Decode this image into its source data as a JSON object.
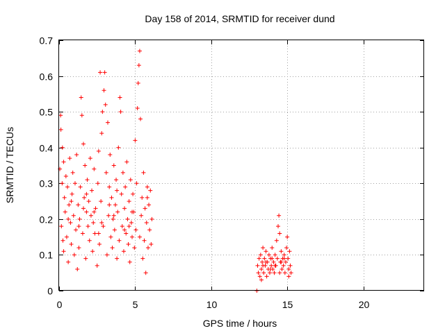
{
  "chart_data": {
    "type": "scatter",
    "title": "Day 158 of 2014, SRMTID for receiver dund",
    "xlabel": "GPS time / hours",
    "ylabel": "SRMTID / TECUs",
    "xlim": [
      0,
      24
    ],
    "ylim": [
      0,
      0.7
    ],
    "xticks": [
      0,
      5,
      10,
      15,
      20
    ],
    "xtick_labels": [
      "0",
      "5",
      "10",
      "15",
      "20"
    ],
    "yticks": [
      0,
      0.1,
      0.2,
      0.3,
      0.4,
      0.5,
      0.6,
      0.7
    ],
    "ytick_labels": [
      "0",
      "0.1",
      "0.2",
      "0.3",
      "0.4",
      "0.5",
      "0.6",
      "0.7"
    ],
    "grid": true,
    "marker": "+",
    "marker_color": "#ff0000",
    "series": [
      {
        "name": "SRMTID",
        "points": [
          [
            0.05,
            0.34
          ],
          [
            0.1,
            0.49
          ],
          [
            0.12,
            0.45
          ],
          [
            0.15,
            0.18
          ],
          [
            0.2,
            0.3
          ],
          [
            0.22,
            0.4
          ],
          [
            0.25,
            0.14
          ],
          [
            0.3,
            0.36
          ],
          [
            0.35,
            0.26
          ],
          [
            0.4,
            0.22
          ],
          [
            0.45,
            0.32
          ],
          [
            0.5,
            0.15
          ],
          [
            0.55,
            0.29
          ],
          [
            0.6,
            0.08
          ],
          [
            0.65,
            0.24
          ],
          [
            0.7,
            0.37
          ],
          [
            0.75,
            0.19
          ],
          [
            0.8,
            0.13
          ],
          [
            0.85,
            0.27
          ],
          [
            0.9,
            0.33
          ],
          [
            0.95,
            0.21
          ],
          [
            1.0,
            0.1
          ],
          [
            1.05,
            0.3
          ],
          [
            1.1,
            0.17
          ],
          [
            1.15,
            0.38
          ],
          [
            1.2,
            0.06
          ],
          [
            1.25,
            0.24
          ],
          [
            1.3,
            0.12
          ],
          [
            1.35,
            0.2
          ],
          [
            1.4,
            0.29
          ],
          [
            1.45,
            0.54
          ],
          [
            1.5,
            0.49
          ],
          [
            1.55,
            0.16
          ],
          [
            1.6,
            0.41
          ],
          [
            1.65,
            0.26
          ],
          [
            1.7,
            0.35
          ],
          [
            1.75,
            0.09
          ],
          [
            1.8,
            0.22
          ],
          [
            1.85,
            0.31
          ],
          [
            1.9,
            0.18
          ],
          [
            1.95,
            0.25
          ],
          [
            2.0,
            0.14
          ],
          [
            2.05,
            0.37
          ],
          [
            2.1,
            0.21
          ],
          [
            2.15,
            0.28
          ],
          [
            2.2,
            0.11
          ],
          [
            2.25,
            0.19
          ],
          [
            2.3,
            0.34
          ],
          [
            2.35,
            0.16
          ],
          [
            2.4,
            0.23
          ],
          [
            2.5,
            0.07
          ],
          [
            2.55,
            0.3
          ],
          [
            2.6,
            0.39
          ],
          [
            2.65,
            0.13
          ],
          [
            2.7,
            0.61
          ],
          [
            2.75,
            0.25
          ],
          [
            2.8,
            0.44
          ],
          [
            2.85,
            0.5
          ],
          [
            2.9,
            0.18
          ],
          [
            2.95,
            0.56
          ],
          [
            3.0,
            0.61
          ],
          [
            3.05,
            0.52
          ],
          [
            3.1,
            0.33
          ],
          [
            3.15,
            0.1
          ],
          [
            3.2,
            0.47
          ],
          [
            3.25,
            0.21
          ],
          [
            3.3,
            0.29
          ],
          [
            3.35,
            0.38
          ],
          [
            3.4,
            0.15
          ],
          [
            3.45,
            0.26
          ],
          [
            3.5,
            0.12
          ],
          [
            3.55,
            0.2
          ],
          [
            3.6,
            0.35
          ],
          [
            3.65,
            0.17
          ],
          [
            3.7,
            0.24
          ],
          [
            3.75,
            0.31
          ],
          [
            3.8,
            0.09
          ],
          [
            3.85,
            0.22
          ],
          [
            3.9,
            0.4
          ],
          [
            3.95,
            0.14
          ],
          [
            4.0,
            0.54
          ],
          [
            4.05,
            0.5
          ],
          [
            4.1,
            0.27
          ],
          [
            4.15,
            0.18
          ],
          [
            4.2,
            0.33
          ],
          [
            4.25,
            0.11
          ],
          [
            4.3,
            0.23
          ],
          [
            4.35,
            0.29
          ],
          [
            4.4,
            0.16
          ],
          [
            4.45,
            0.36
          ],
          [
            4.5,
            0.2
          ],
          [
            4.55,
            0.13
          ],
          [
            4.6,
            0.25
          ],
          [
            4.65,
            0.08
          ],
          [
            4.7,
            0.31
          ],
          [
            4.75,
            0.19
          ],
          [
            4.8,
            0.15
          ],
          [
            4.85,
            0.27
          ],
          [
            4.9,
            0.22
          ],
          [
            4.95,
            0.12
          ],
          [
            5.0,
            0.42
          ],
          [
            5.05,
            0.17
          ],
          [
            5.1,
            0.3
          ],
          [
            5.15,
            0.51
          ],
          [
            5.2,
            0.58
          ],
          [
            5.25,
            0.63
          ],
          [
            5.3,
            0.67
          ],
          [
            5.35,
            0.48
          ],
          [
            5.4,
            0.21
          ],
          [
            5.45,
            0.26
          ],
          [
            5.5,
            0.09
          ],
          [
            5.55,
            0.33
          ],
          [
            5.6,
            0.14
          ],
          [
            5.65,
            0.23
          ],
          [
            5.7,
            0.05
          ],
          [
            5.75,
            0.19
          ],
          [
            5.8,
            0.29
          ],
          [
            5.85,
            0.12
          ],
          [
            5.9,
            0.24
          ],
          [
            5.95,
            0.17
          ],
          [
            6.0,
            0.28
          ],
          [
            6.05,
            0.13
          ],
          [
            6.1,
            0.2
          ],
          [
            0.3,
            0.11
          ],
          [
            0.8,
            0.25
          ],
          [
            1.3,
            0.18
          ],
          [
            1.8,
            0.27
          ],
          [
            2.3,
            0.22
          ],
          [
            2.8,
            0.19
          ],
          [
            3.3,
            0.24
          ],
          [
            3.8,
            0.28
          ],
          [
            4.3,
            0.17
          ],
          [
            4.8,
            0.22
          ],
          [
            5.3,
            0.15
          ],
          [
            5.8,
            0.26
          ],
          [
            0.6,
            0.2
          ],
          [
            1.6,
            0.23
          ],
          [
            2.6,
            0.16
          ],
          [
            3.6,
            0.21
          ],
          [
            4.6,
            0.18
          ],
          [
            13.0,
            0.0
          ],
          [
            13.05,
            0.07
          ],
          [
            13.1,
            0.05
          ],
          [
            13.15,
            0.09
          ],
          [
            13.2,
            0.04
          ],
          [
            13.25,
            0.1
          ],
          [
            13.3,
            0.06
          ],
          [
            13.35,
            0.08
          ],
          [
            13.4,
            0.12
          ],
          [
            13.45,
            0.05
          ],
          [
            13.5,
            0.09
          ],
          [
            13.55,
            0.07
          ],
          [
            13.6,
            0.11
          ],
          [
            13.65,
            0.04
          ],
          [
            13.7,
            0.08
          ],
          [
            13.75,
            0.06
          ],
          [
            13.8,
            0.1
          ],
          [
            13.85,
            0.05
          ],
          [
            13.9,
            0.09
          ],
          [
            13.95,
            0.07
          ],
          [
            14.0,
            0.12
          ],
          [
            14.05,
            0.06
          ],
          [
            14.1,
            0.08
          ],
          [
            14.15,
            0.05
          ],
          [
            14.2,
            0.1
          ],
          [
            14.25,
            0.07
          ],
          [
            14.3,
            0.14
          ],
          [
            14.35,
            0.09
          ],
          [
            14.4,
            0.18
          ],
          [
            14.45,
            0.21
          ],
          [
            14.5,
            0.16
          ],
          [
            14.55,
            0.08
          ],
          [
            14.6,
            0.11
          ],
          [
            14.65,
            0.06
          ],
          [
            14.7,
            0.09
          ],
          [
            14.75,
            0.07
          ],
          [
            14.8,
            0.1
          ],
          [
            14.85,
            0.05
          ],
          [
            14.9,
            0.08
          ],
          [
            14.95,
            0.12
          ],
          [
            15.0,
            0.15
          ],
          [
            15.05,
            0.09
          ],
          [
            15.1,
            0.06
          ],
          [
            15.15,
            0.11
          ],
          [
            15.2,
            0.07
          ],
          [
            15.25,
            0.05
          ],
          [
            13.3,
            0.03
          ],
          [
            13.6,
            0.08
          ],
          [
            13.9,
            0.06
          ],
          [
            14.2,
            0.07
          ],
          [
            14.5,
            0.05
          ],
          [
            14.8,
            0.09
          ],
          [
            15.1,
            0.04
          ],
          [
            13.4,
            0.07
          ],
          [
            14.0,
            0.09
          ],
          [
            14.6,
            0.08
          ]
        ]
      }
    ]
  }
}
